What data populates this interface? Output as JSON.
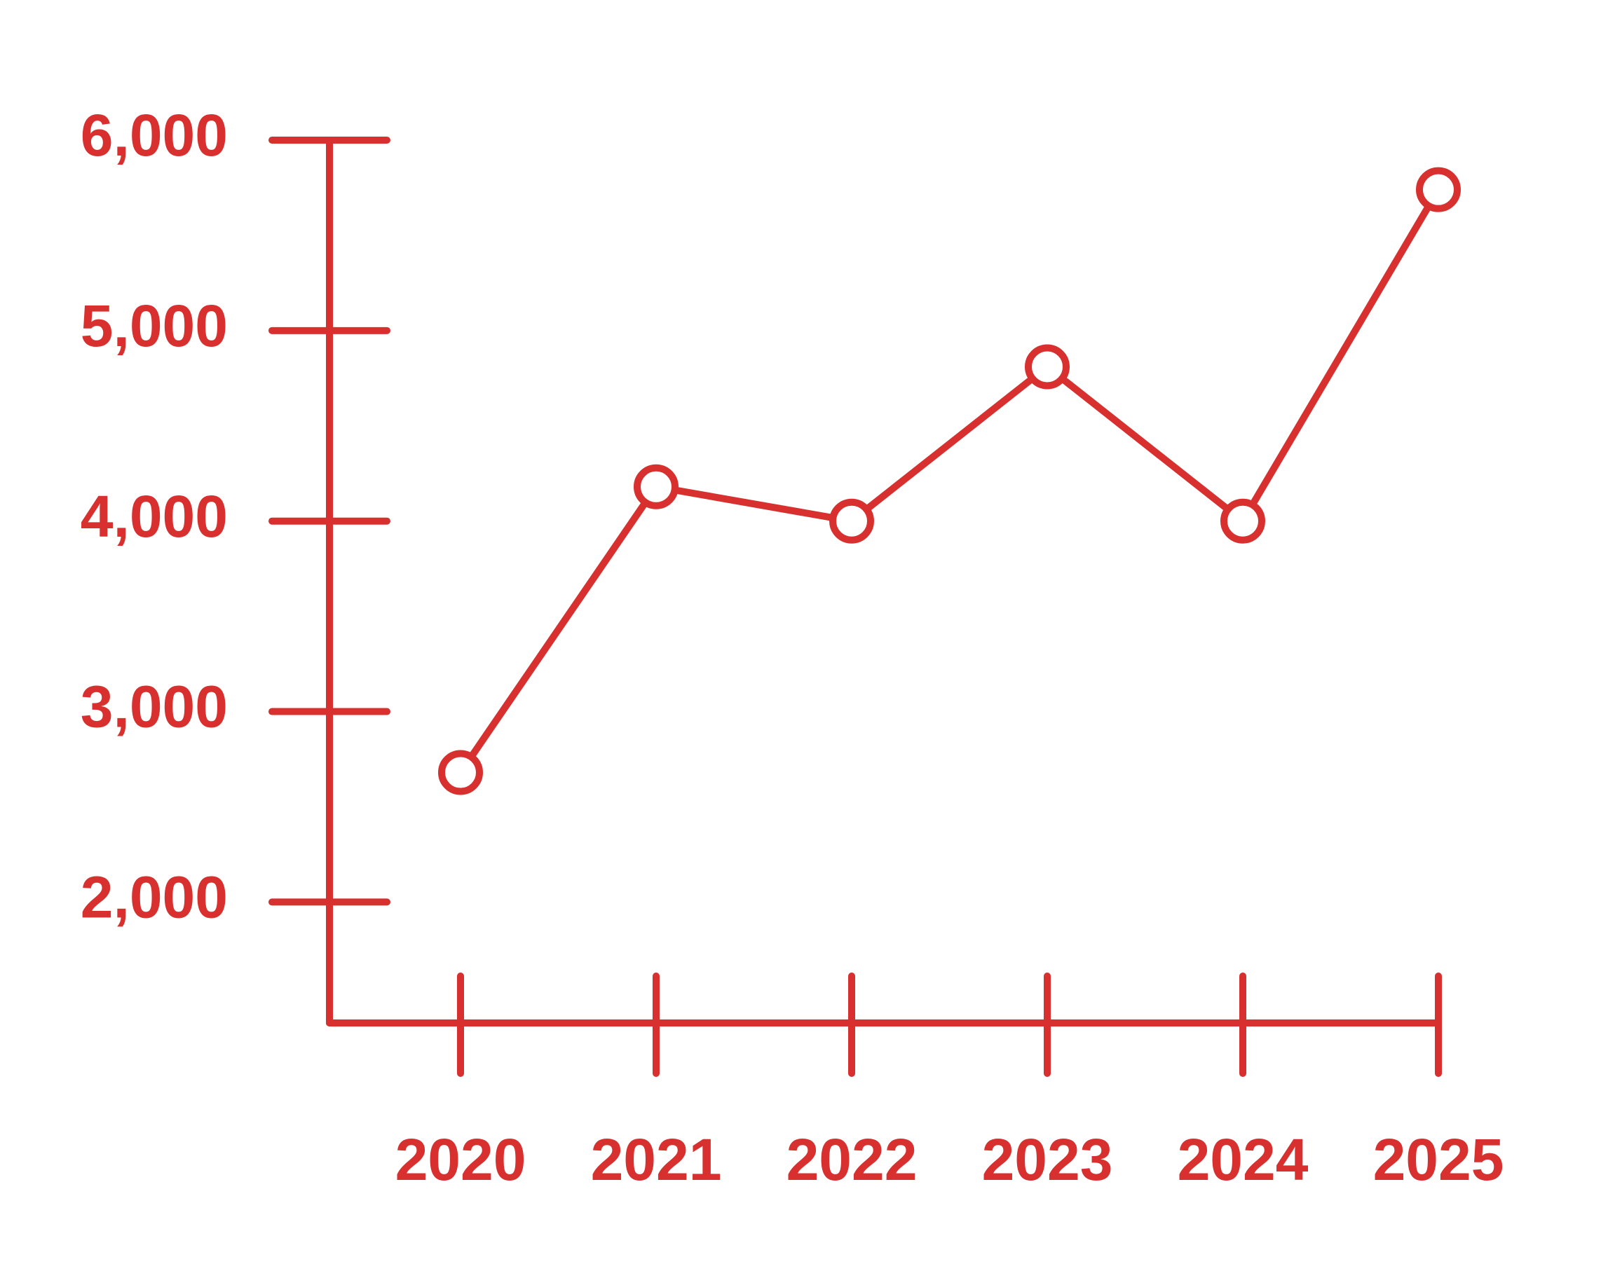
{
  "chart_data": {
    "type": "line",
    "categories": [
      "2020",
      "2021",
      "2022",
      "2023",
      "2024",
      "2025"
    ],
    "values": [
      2680,
      4180,
      4000,
      4810,
      4000,
      5740
    ],
    "color": "#d7302f",
    "ylim": [
      1365,
      6000
    ],
    "yticks": [
      {
        "value": 2000,
        "label": "2,000"
      },
      {
        "value": 3000,
        "label": "3,000"
      },
      {
        "value": 4000,
        "label": "4,000"
      },
      {
        "value": 5000,
        "label": "5,000"
      },
      {
        "value": 6000,
        "label": "6,000"
      }
    ],
    "grid": false
  }
}
